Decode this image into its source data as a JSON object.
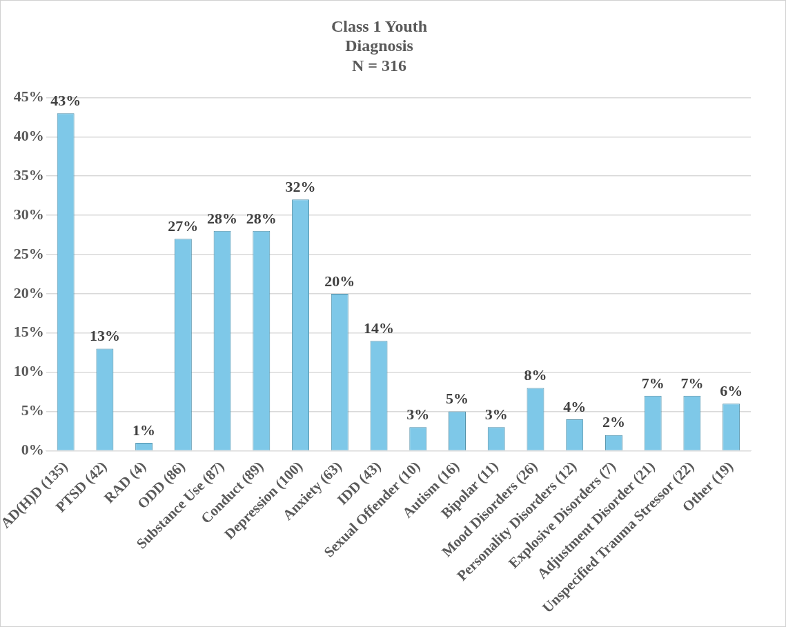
{
  "chart_data": {
    "type": "bar",
    "title": "Class 1 Youth\nDiagnosis\nN = 316",
    "categories": [
      "AD(H)D (135)",
      "PTSD (42)",
      "RAD (4)",
      "ODD (86)",
      "Substance Use (87)",
      "Conduct (89)",
      "Depression (100)",
      "Anxiety (63)",
      "IDD (43)",
      "Sexual Offender (10)",
      "Autism (16)",
      "Bipolar (11)",
      "Mood Disorders (26)",
      "Personality Disorders (12)",
      "Explosive Disorders (7)",
      "Adjustment Disorder (21)",
      "Unspecified Trauma Stressor (22)",
      "Other (19)"
    ],
    "values": [
      43,
      13,
      1,
      27,
      28,
      28,
      32,
      20,
      14,
      3,
      5,
      3,
      8,
      4,
      2,
      7,
      7,
      6
    ],
    "value_labels": [
      "43%",
      "13%",
      "1%",
      "27%",
      "28%",
      "28%",
      "32%",
      "20%",
      "14%",
      "3%",
      "5%",
      "3%",
      "8%",
      "4%",
      "2%",
      "7%",
      "7%",
      "6%"
    ],
    "color": "#7ec8e8",
    "ylim": [
      0,
      45
    ],
    "yticks": [
      {
        "value": 0,
        "label": "0%"
      },
      {
        "value": 5,
        "label": "5%"
      },
      {
        "value": 10,
        "label": "10%"
      },
      {
        "value": 15,
        "label": "15%"
      },
      {
        "value": 20,
        "label": "20%"
      },
      {
        "value": 25,
        "label": "25%"
      },
      {
        "value": 30,
        "label": "30%"
      },
      {
        "value": 35,
        "label": "35%"
      },
      {
        "value": 40,
        "label": "40%"
      },
      {
        "value": 45,
        "label": "45%"
      }
    ],
    "grid": "y",
    "legend": false
  }
}
